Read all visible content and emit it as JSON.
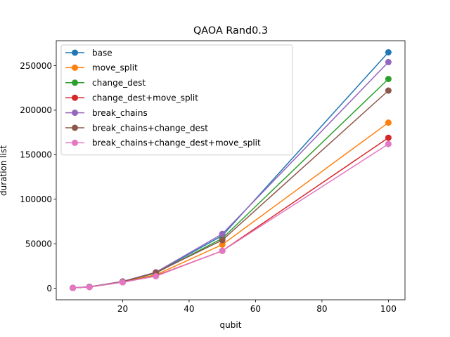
{
  "chart_data": {
    "type": "line",
    "title": "QAOA Rand0.3",
    "xlabel": "qubit",
    "ylabel": "duration list",
    "xlim": [
      0,
      105
    ],
    "ylim": [
      -13000,
      278000
    ],
    "xticks": [
      20,
      40,
      60,
      80,
      100
    ],
    "xtick_labels": [
      "20",
      "40",
      "60",
      "80",
      "100"
    ],
    "yticks": [
      0,
      50000,
      100000,
      150000,
      200000,
      250000
    ],
    "ytick_labels": [
      "0",
      "50000",
      "100000",
      "150000",
      "200000",
      "250000"
    ],
    "grid": false,
    "legend_position": "upper-left",
    "x": [
      5,
      10,
      20,
      30,
      50,
      100
    ],
    "series": [
      {
        "name": "base",
        "color": "#1f77b4",
        "values": [
          400,
          1500,
          7500,
          17500,
          59000,
          265000
        ]
      },
      {
        "name": "move_split",
        "color": "#ff7f0e",
        "values": [
          400,
          1400,
          7000,
          15000,
          49000,
          186000
        ]
      },
      {
        "name": "change_dest",
        "color": "#2ca02c",
        "values": [
          400,
          1500,
          7400,
          17000,
          56000,
          235000
        ]
      },
      {
        "name": "change_dest+move_split",
        "color": "#d62728",
        "values": [
          400,
          1300,
          6800,
          14000,
          42000,
          169000
        ]
      },
      {
        "name": "break_chains",
        "color": "#9467bd",
        "values": [
          400,
          1500,
          7600,
          18000,
          61000,
          254000
        ]
      },
      {
        "name": "break_chains+change_dest",
        "color": "#8c564b",
        "values": [
          400,
          1500,
          7400,
          17500,
          54000,
          222000
        ]
      },
      {
        "name": "break_chains+change_dest+move_split",
        "color": "#e377c2",
        "values": [
          400,
          1300,
          6700,
          13500,
          42000,
          162000
        ]
      }
    ]
  }
}
